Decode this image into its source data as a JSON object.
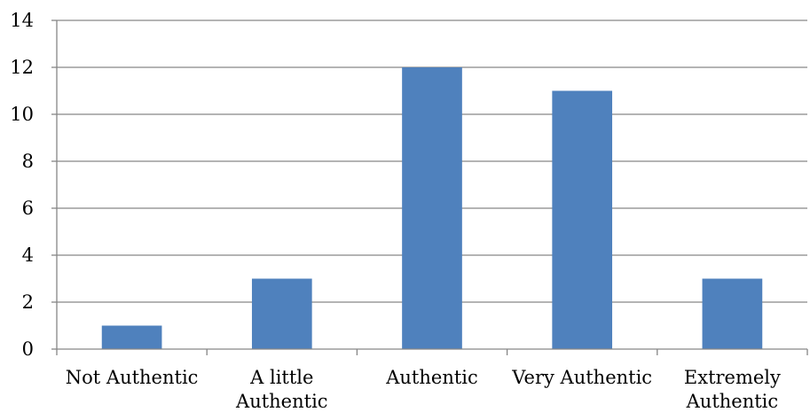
{
  "chart_data": {
    "type": "bar",
    "categories": [
      [
        "Not Authentic"
      ],
      [
        "A little",
        "Authentic"
      ],
      [
        "Authentic"
      ],
      [
        "Very Authentic"
      ],
      [
        "Extremely",
        "Authentic"
      ]
    ],
    "values": [
      1,
      3,
      12,
      11,
      3
    ],
    "ylim": [
      0,
      14
    ],
    "yticks": [
      "0",
      "2",
      "4",
      "6",
      "8",
      "10",
      "12",
      "14"
    ],
    "grid": true,
    "legend": "none",
    "colors": {
      "bar": "#4F81BD",
      "grid": "#888888",
      "axis": "#868686"
    }
  }
}
